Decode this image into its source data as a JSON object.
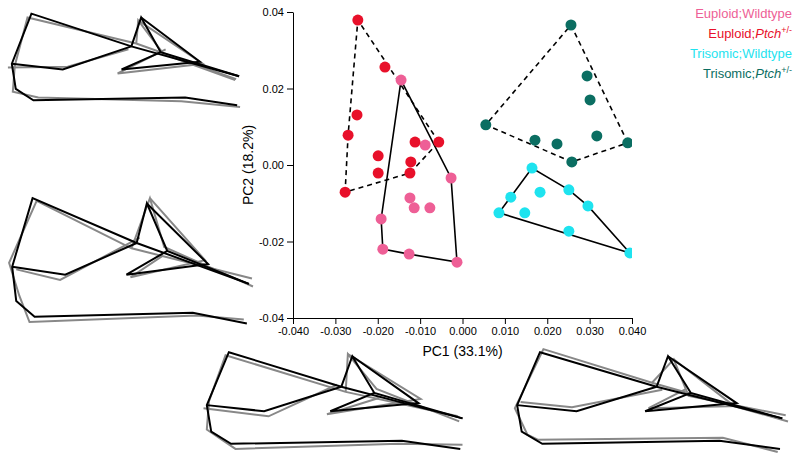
{
  "chart_data": {
    "type": "scatter",
    "x_label": "PC1 (33.1%)",
    "y_label": "PC2 (18.2%)",
    "xlim": [
      -0.04,
      0.04
    ],
    "ylim": [
      -0.04,
      0.04
    ],
    "xticks": [
      {
        "value": -0.04,
        "label": "-0.040"
      },
      {
        "value": -0.03,
        "label": "-0.030"
      },
      {
        "value": -0.02,
        "label": "-0.020"
      },
      {
        "value": -0.01,
        "label": "-0.010"
      },
      {
        "value": 0,
        "label": "0.000"
      },
      {
        "value": 0.01,
        "label": "0.010"
      },
      {
        "value": 0.02,
        "label": "0.020"
      },
      {
        "value": 0.03,
        "label": "0.030"
      },
      {
        "value": 0.04,
        "label": "0.040"
      }
    ],
    "yticks": [
      -0.04,
      -0.02,
      {
        "value": 0,
        "label": "0.00"
      },
      0.02,
      0.04
    ],
    "legend": "top-right",
    "series": [
      {
        "name": "Euploid;Wildtype",
        "color": "#ee5f96",
        "marker": "circle",
        "line_style": "solid",
        "x": [
          -0.0145,
          -0.0088,
          -0.0027,
          -0.0124,
          -0.0114,
          -0.0077,
          -0.0192,
          -0.0188,
          -0.0126,
          -0.0013
        ],
        "y": [
          0.0222,
          0.0052,
          -0.0034,
          -0.0086,
          -0.0112,
          -0.0112,
          -0.0141,
          -0.022,
          -0.0233,
          -0.0254
        ]
      },
      {
        "name": "Euploid;Ptch+/-",
        "color": "#e8102a",
        "marker": "circle",
        "line_style": "dashed",
        "x": [
          -0.0247,
          -0.0183,
          -0.0249,
          -0.027,
          -0.0199,
          -0.0122,
          -0.0112,
          -0.0056,
          -0.0199,
          -0.0124,
          -0.0277
        ],
        "y": [
          0.0379,
          0.0256,
          0.0131,
          0.0078,
          0.0024,
          0.0008,
          0.006,
          0.006,
          -0.0021,
          -0.0021,
          -0.0071
        ]
      },
      {
        "name": "Trisomic;Wildtype",
        "color": "#1ee3ef",
        "marker": "circle",
        "line_style": "solid",
        "x": [
          0.0164,
          0.0114,
          0.0183,
          0.0251,
          0.0086,
          0.0147,
          0.0296,
          0.0251,
          0.0395
        ],
        "y": [
          -0.0008,
          -0.0084,
          -0.0071,
          -0.0065,
          -0.0125,
          -0.0125,
          -0.0107,
          -0.0173,
          -0.023
        ]
      },
      {
        "name": "Trisomic;Ptch+/-",
        "color": "#0b6e62",
        "marker": "circle",
        "line_style": "dashed",
        "x": [
          0.0256,
          0.0294,
          0.0055,
          0.0301,
          0.0317,
          0.0223,
          0.0171,
          0.0258,
          0.039
        ],
        "y": [
          0.0366,
          0.0233,
          0.0105,
          0.017,
          0.0076,
          0.0055,
          0.0065,
          0.0008,
          0.0058
        ]
      }
    ]
  }
}
